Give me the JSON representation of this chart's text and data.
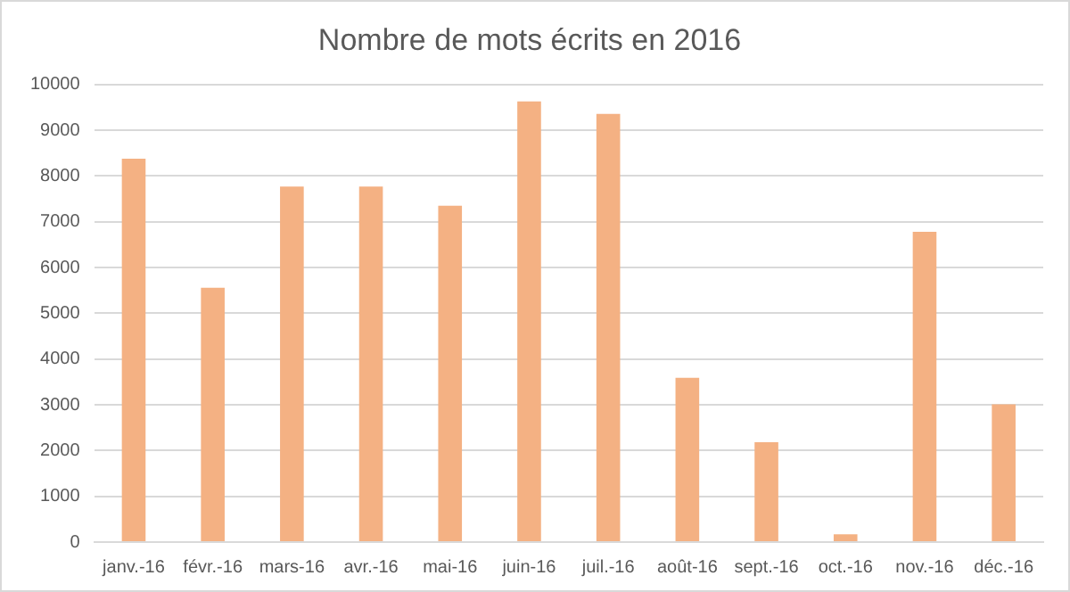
{
  "chart_data": {
    "type": "bar",
    "title": "Nombre de mots écrits en 2016",
    "categories": [
      "janv.-16",
      "févr.-16",
      "mars-16",
      "avr.-16",
      "mai-16",
      "juin-16",
      "juil.-16",
      "août-16",
      "sept.-16",
      "oct.-16",
      "nov.-16",
      "déc.-16"
    ],
    "values": [
      8380,
      5560,
      7770,
      7770,
      7350,
      9630,
      9360,
      3590,
      2180,
      170,
      6780,
      3010
    ],
    "color": "#f4b183",
    "ylim": [
      0,
      10000
    ],
    "yticks": [
      0,
      1000,
      2000,
      3000,
      4000,
      5000,
      6000,
      7000,
      8000,
      9000,
      10000
    ],
    "grid": "y"
  }
}
